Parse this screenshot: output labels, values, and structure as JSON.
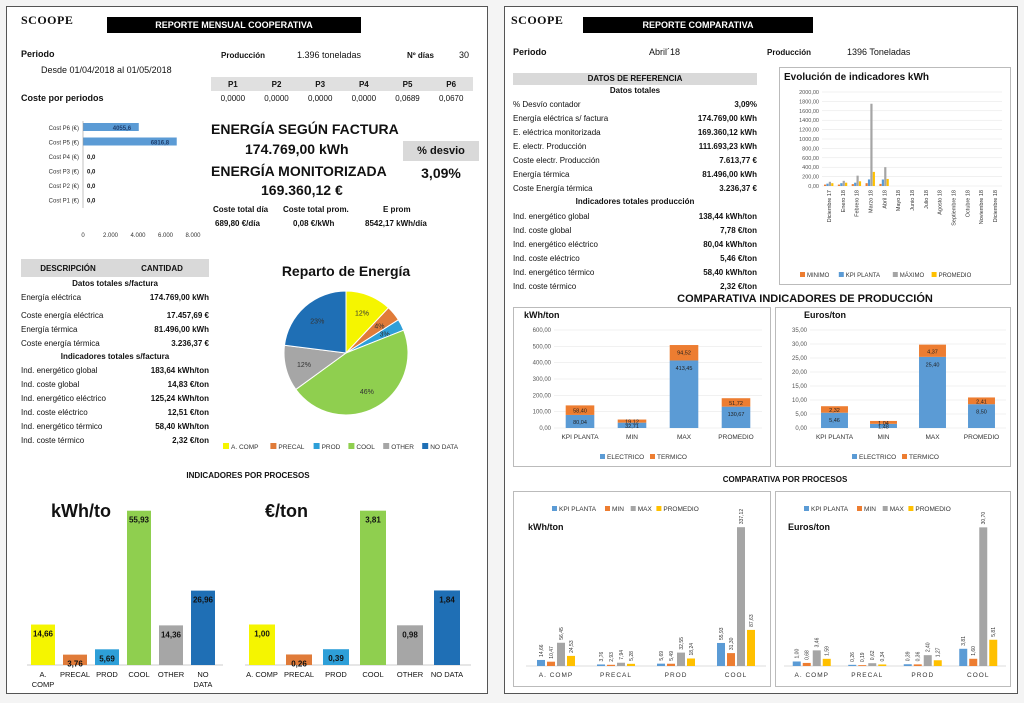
{
  "colors": {
    "yellow": "#f5f500",
    "orange": "#e07b39",
    "blue": "#2e9fd8",
    "green": "#8fcf4f",
    "gray": "#a6a6a6",
    "darkblue": "#1f6fb5",
    "kpi": "#5b9bd5",
    "min": "#ed7d31",
    "max": "#a5a5a5",
    "prom": "#ffc000"
  },
  "left": {
    "logo": "SCOOPE",
    "title": "REPORTE MENSUAL COOPERATIVA",
    "periodo_label": "Periodo",
    "periodo_value": "Desde 01/04/2018 al 01/05/2018",
    "produccion_label": "Producción",
    "produccion_value": "1.396 toneladas",
    "dias_label": "Nº días",
    "dias_value": "30",
    "p_headers": [
      "P1",
      "P2",
      "P3",
      "P4",
      "P5",
      "P6"
    ],
    "p_values": [
      "0,0000",
      "0,0000",
      "0,0000",
      "0,0000",
      "0,0689",
      "0,0670"
    ],
    "coste_periodos_label": "Coste por periodos",
    "energia_factura_label": "ENERGÍA SEGÚN FACTURA",
    "energia_factura_value": "174.769,00 kWh",
    "desvio_label": "% desvio",
    "desvio_value": "3,09%",
    "energia_monit_label": "ENERGÍA MONITORIZADA",
    "energia_monit_value": "169.360,12 €",
    "kpi_labels": [
      "Coste total día",
      "Coste total prom.",
      "E prom"
    ],
    "kpi_values": [
      "689,80 €/día",
      "0,08 €/kWh",
      "8542,17 kWh/día"
    ],
    "desc_header": "DESCRIPCIÓN",
    "cant_header": "CANTIDAD",
    "sub1": "Datos totales s/factura",
    "rows1": [
      {
        "label": "Energía eléctrica",
        "value": "174.769,00 kWh"
      },
      {
        "label": "Coste energía eléctrica",
        "value": "17.457,69 €"
      },
      {
        "label": "Energía térmica",
        "value": "81.496,00 kWh"
      },
      {
        "label": "Coste energía térmica",
        "value": "3.236,37 €"
      }
    ],
    "sub2": "Indicadores totales s/factura",
    "rows2": [
      {
        "label": "Ind. energético global",
        "value": "183,64 kWh/ton"
      },
      {
        "label": "Ind. coste global",
        "value": "14,83 €/ton"
      },
      {
        "label": "Ind. energético eléctrico",
        "value": "125,24 kWh/ton"
      },
      {
        "label": "Ind. coste eléctrico",
        "value": "12,51 €/ton"
      },
      {
        "label": "Ind. energético térmico",
        "value": "58,40 kWh/ton"
      },
      {
        "label": "Ind. coste térmico",
        "value": "2,32 €/ton"
      }
    ],
    "reparto_title": "Reparto de Energía",
    "procesos_title": "INDICADORES POR PROCESOS",
    "kwh_title": "kWh/to",
    "eur_title": "€/ton"
  },
  "right": {
    "logo": "SCOOPE",
    "title": "REPORTE COMPARATIVA",
    "periodo_label": "Periodo",
    "periodo_value": "Abril´18",
    "produccion_label": "Producción",
    "produccion_value": "1396 Toneladas",
    "ref_header": "DATOS DE REFERENCIA",
    "sub1": "Datos totales",
    "rows1": [
      {
        "label": "% Desvío contador",
        "value": "3,09%"
      },
      {
        "label": "Energía eléctrica s/ factura",
        "value": "174.769,00 kWh"
      },
      {
        "label": "E. eléctrica monitorizada",
        "value": "169.360,12 kWh"
      },
      {
        "label": "E. electr. Producción",
        "value": "111.693,23 kWh"
      },
      {
        "label": "Coste electr. Producción",
        "value": "7.613,77 €"
      },
      {
        "label": "Energía térmica",
        "value": "81.496,00 kWh"
      },
      {
        "label": "Coste Energía térmica",
        "value": "3.236,37 €"
      }
    ],
    "sub2": "Indicadores totales producción",
    "rows2": [
      {
        "label": "Ind. energético global",
        "value": "138,44 kWh/ton"
      },
      {
        "label": "Ind. coste global",
        "value": "7,78 €/ton"
      },
      {
        "label": "Ind. energético eléctrico",
        "value": "80,04 kWh/ton"
      },
      {
        "label": "Ind. coste eléctrico",
        "value": "5,46 €/ton"
      },
      {
        "label": "Ind. energético térmico",
        "value": "58,40 kWh/ton"
      },
      {
        "label": "Ind. coste térmico",
        "value": "2,32 €/ton"
      }
    ],
    "evol_title": "Evolución de indicadores kWh",
    "comp_title": "COMPARATIVA INDICADORES DE PRODUCCIÓN",
    "kwh_ton": "kWh/ton",
    "eur_ton": "Euros/ton",
    "procesos_title": "COMPARATIVA POR PROCESOS"
  },
  "chart_data": [
    {
      "id": "coste_periodos",
      "type": "bar",
      "orientation": "horizontal",
      "categories": [
        "Cost P6 (€)",
        "Cost P5 (€)",
        "Cost P4 (€)",
        "Cost P3 (€)",
        "Cost P2 (€)",
        "Cost P1 (€)"
      ],
      "values": [
        4055.6,
        6816.8,
        0,
        0,
        0,
        0
      ],
      "labels": [
        "4055,6",
        "6816,8",
        "0,0",
        "0,0",
        "0,0",
        "0,0"
      ],
      "xticks": [
        "0",
        "2.000",
        "4.000",
        "6.000",
        "8.000"
      ],
      "xlim": [
        0,
        8000
      ]
    },
    {
      "id": "reparto",
      "type": "pie",
      "title": "Reparto de Energía",
      "categories": [
        "A. COMP",
        "PRECAL",
        "PROD",
        "COOL",
        "OTHER",
        "NO DATA"
      ],
      "values": [
        12,
        4,
        3,
        46,
        12,
        23
      ],
      "labels": [
        "12%",
        "4%",
        "3%",
        "46%",
        "12%",
        "23%"
      ]
    },
    {
      "id": "proc_kwh",
      "type": "bar",
      "categories": [
        "A. COMP",
        "PRECAL",
        "PROD",
        "COOL",
        "OTHER",
        "NO DATA"
      ],
      "values": [
        14.66,
        3.76,
        5.69,
        55.93,
        14.36,
        26.96
      ],
      "labels": [
        "14,66",
        "3,76",
        "5,69",
        "55,93",
        "14,36",
        "26,96"
      ],
      "ylim": [
        0,
        58
      ]
    },
    {
      "id": "proc_eur",
      "type": "bar",
      "categories": [
        "A. COMP",
        "PRECAL",
        "PROD",
        "COOL",
        "OTHER",
        "NO DATA"
      ],
      "values": [
        1.0,
        0.26,
        0.39,
        3.81,
        0.98,
        1.84
      ],
      "labels": [
        "1,00",
        "0,26",
        "0,39",
        "3,81",
        "0,98",
        "1,84"
      ],
      "ylim": [
        0,
        3.95
      ]
    },
    {
      "id": "evolucion",
      "type": "bar",
      "title": "Evolución de indicadores kWh",
      "categories": [
        "Diciembre 17",
        "Enero 18",
        "Febrero 18",
        "Marzo 18",
        "Abril 18",
        "Mayo 18",
        "Junio 18",
        "Julio 18",
        "Agosto 18",
        "Septiembre 18",
        "Octubre 18",
        "Noviembre 18",
        "Diciembre 18"
      ],
      "series": [
        {
          "name": "MINIMO",
          "values": [
            30,
            30,
            40,
            60,
            45,
            0,
            0,
            0,
            0,
            0,
            0,
            0,
            0
          ]
        },
        {
          "name": "KPI PLANTA",
          "values": [
            50,
            60,
            70,
            140,
            138,
            0,
            0,
            0,
            0,
            0,
            0,
            0,
            0
          ]
        },
        {
          "name": "MÁXIMO",
          "values": [
            90,
            110,
            220,
            1750,
            400,
            0,
            0,
            0,
            0,
            0,
            0,
            0,
            0
          ]
        },
        {
          "name": "PROMEDIO",
          "values": [
            60,
            70,
            100,
            300,
            150,
            0,
            0,
            0,
            0,
            0,
            0,
            0,
            0
          ]
        }
      ],
      "yticks": [
        "0,00",
        "200,00",
        "400,00",
        "600,00",
        "800,00",
        "1000,00",
        "1200,00",
        "1400,00",
        "1600,00",
        "1800,00",
        "2000,00"
      ],
      "ylim": [
        0,
        2000
      ]
    },
    {
      "id": "comp_kwh",
      "type": "bar",
      "stacked": true,
      "categories": [
        "KPI PLANTA",
        "MIN",
        "MAX",
        "PROMEDIO"
      ],
      "series": [
        {
          "name": "ELECTRICO",
          "values": [
            80.04,
            32.71,
            413.45,
            130.67
          ],
          "labels": [
            "80,04",
            "32,71",
            "413,45",
            "130,67"
          ]
        },
        {
          "name": "TERMICO",
          "values": [
            58.4,
            19.12,
            94.52,
            51.72
          ],
          "labels": [
            "58,40",
            "19,12",
            "94,52",
            "51,72"
          ]
        }
      ],
      "yticks": [
        "0,00",
        "100,00",
        "200,00",
        "300,00",
        "400,00",
        "500,00",
        "600,00"
      ],
      "ylim": [
        0,
        600
      ]
    },
    {
      "id": "comp_eur",
      "type": "bar",
      "stacked": true,
      "categories": [
        "KPI PLANTA",
        "MIN",
        "MAX",
        "PROMEDIO"
      ],
      "series": [
        {
          "name": "ELECTRICO",
          "values": [
            5.46,
            1.48,
            25.4,
            8.5
          ],
          "labels": [
            "5,46",
            "1,48",
            "25,40",
            "8,50"
          ]
        },
        {
          "name": "TERMICO",
          "values": [
            2.32,
            1.04,
            4.37,
            2.41
          ],
          "labels": [
            "2,32",
            "1,04",
            "4,37",
            "2,41"
          ]
        }
      ],
      "yticks": [
        "0,00",
        "5,00",
        "10,00",
        "15,00",
        "20,00",
        "25,00",
        "30,00",
        "35,00"
      ],
      "ylim": [
        0,
        35
      ]
    },
    {
      "id": "procs_kwh",
      "type": "bar",
      "categories": [
        "A. COMP",
        "PRECAL",
        "PROD",
        "COOL"
      ],
      "series": [
        {
          "name": "KPI PLANTA",
          "values": [
            14.66,
            3.76,
            5.69,
            55.93
          ],
          "labels": [
            "14,66",
            "3,76",
            "5,69",
            "55,93"
          ]
        },
        {
          "name": "MIN",
          "values": [
            10.47,
            2.93,
            5.49,
            31.3
          ],
          "labels": [
            "10,47",
            "2,93",
            "5,49",
            "31,30"
          ]
        },
        {
          "name": "MAX",
          "values": [
            56.45,
            7.94,
            32.55,
            337.12
          ],
          "labels": [
            "56,45",
            "7,94",
            "32,55",
            "337,12"
          ]
        },
        {
          "name": "PROMEDIO",
          "values": [
            24.53,
            5.28,
            18.24,
            87.63
          ],
          "labels": [
            "24,53",
            "5,28",
            "18,24",
            "87,63"
          ]
        }
      ],
      "ylim": [
        0,
        340
      ]
    },
    {
      "id": "procs_eur",
      "type": "bar",
      "categories": [
        "A. COMP",
        "PRECAL",
        "PROD",
        "COOL"
      ],
      "series": [
        {
          "name": "KPI PLANTA",
          "values": [
            1.0,
            0.26,
            0.39,
            3.81
          ],
          "labels": [
            "1,00",
            "0,26",
            "0,39",
            "3,81"
          ]
        },
        {
          "name": "MIN",
          "values": [
            0.68,
            0.19,
            0.36,
            1.6
          ],
          "labels": [
            "0,68",
            "0,19",
            "0,36",
            "1,60"
          ]
        },
        {
          "name": "MAX",
          "values": [
            3.46,
            0.62,
            2.4,
            30.7
          ],
          "labels": [
            "3,46",
            "0,62",
            "2,40",
            "30,70"
          ]
        },
        {
          "name": "PROMEDIO",
          "values": [
            1.59,
            0.34,
            1.27,
            5.81
          ],
          "labels": [
            "1,59",
            "0,34",
            "1,27",
            "5,81"
          ]
        }
      ],
      "ylim": [
        0,
        31
      ]
    }
  ]
}
